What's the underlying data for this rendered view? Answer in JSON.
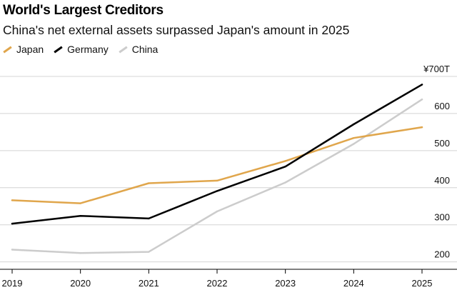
{
  "title": "World's Largest Creditors",
  "subtitle": "China's net external assets surpassed Japan's amount in 2025",
  "colors": {
    "Japan": "#e0a64c",
    "Germany": "#000000",
    "China": "#cccccc",
    "grid": "#d4d4d4"
  },
  "chart_data": {
    "type": "line",
    "title": "World's Largest Creditors",
    "subtitle": "China's net external assets surpassed Japan's amount in 2025",
    "x": [
      2019,
      2020,
      2021,
      2022,
      2023,
      2024,
      2025
    ],
    "x_tick_labels": [
      "2019",
      "2020",
      "2021",
      "2022",
      "2023",
      "2024",
      "2025"
    ],
    "y_ticks": [
      200,
      300,
      400,
      500,
      600,
      700
    ],
    "y_tick_labels": [
      "200",
      "300",
      "400",
      "500",
      "600",
      "¥700T"
    ],
    "ylim": [
      180,
      700
    ],
    "grid": true,
    "legend_position": "top-left",
    "series": [
      {
        "name": "Japan",
        "color": "#e0a64c",
        "values": [
          366,
          358,
          412,
          419,
          472,
          534,
          563
        ]
      },
      {
        "name": "Germany",
        "color": "#000000",
        "values": [
          303,
          324,
          317,
          391,
          457,
          571,
          678
        ]
      },
      {
        "name": "China",
        "color": "#cccccc",
        "values": [
          233,
          224,
          227,
          336,
          414,
          518,
          638
        ]
      }
    ]
  }
}
